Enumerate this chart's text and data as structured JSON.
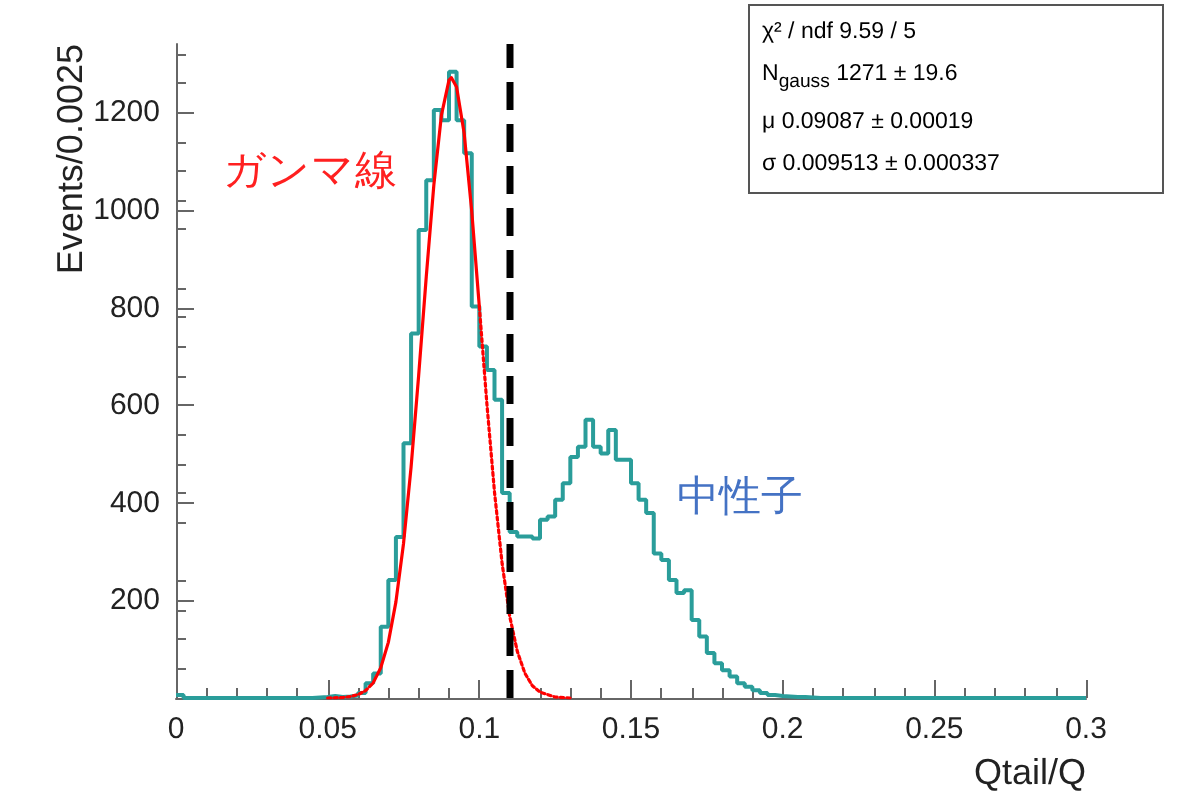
{
  "chart_data": {
    "type": "histogram",
    "xlabel": "Qtail/Q",
    "ylabel": "Events/0.0025",
    "xlim": [
      0,
      0.3
    ],
    "xticks": [
      0,
      0.05,
      0.1,
      0.15,
      0.2,
      0.25,
      0.3
    ],
    "ylim": [
      0,
      1340
    ],
    "yticks": [
      {
        "value": 0,
        "label": null
      },
      200,
      400,
      600,
      800,
      1000,
      1200
    ],
    "grid": false,
    "marker": "none",
    "series": [
      {
        "color": "#2a9d9a",
        "bins": [
          0,
          0.0025,
          0.005,
          0.0075,
          0.01,
          0.0125,
          0.015,
          0.0175,
          0.02,
          0.0225,
          0.025,
          0.0275,
          0.03,
          0.0325,
          0.035,
          0.0375,
          0.04,
          0.0425,
          0.045,
          0.0475,
          0.05,
          0.0525,
          0.055,
          0.0575,
          0.06,
          0.0625,
          0.065,
          0.0675,
          0.07,
          0.0725,
          0.075,
          0.0775,
          0.08,
          0.0825,
          0.085,
          0.0875,
          0.09,
          0.0925,
          0.095,
          0.0975,
          0.1,
          0.1025,
          0.105,
          0.1075,
          0.11,
          0.1125,
          0.115,
          0.1175,
          0.12,
          0.1225,
          0.125,
          0.1275,
          0.13,
          0.1325,
          0.135,
          0.1375,
          0.14,
          0.1425,
          0.145,
          0.1475,
          0.15,
          0.1525,
          0.155,
          0.1575,
          0.16,
          0.1625,
          0.165,
          0.1675,
          0.17,
          0.1725,
          0.175,
          0.1775,
          0.18,
          0.1825,
          0.185,
          0.1875,
          0.19,
          0.1925,
          0.195,
          0.1975,
          0.2,
          0.2025,
          0.205,
          0.2075,
          0.21,
          0.2125,
          0.215,
          0.2175,
          0.22,
          0.2225,
          0.225,
          0.2275,
          0.23,
          0.2325,
          0.235,
          0.2375,
          0.24,
          0.2425,
          0.245,
          0.2475,
          0.25,
          0.2525,
          0.255,
          0.2575,
          0.26,
          0.2625,
          0.265,
          0.2675,
          0.27,
          0.2725,
          0.275,
          0.2775,
          0.28,
          0.2825,
          0.285,
          0.2875,
          0.29,
          0.2925,
          0.295,
          0.2975,
          0.3
        ],
        "values": [
          6,
          0,
          0,
          0,
          0,
          0,
          0,
          0,
          0,
          0,
          0,
          0,
          0,
          0,
          0,
          0,
          0,
          0,
          1,
          2,
          4,
          2,
          3,
          5,
          10,
          30,
          50,
          146,
          242,
          330,
          522,
          747,
          959,
          1061,
          1205,
          1184,
          1283,
          1184,
          1116,
          802,
          720,
          672,
          611,
          420,
          340,
          331,
          331,
          327,
          365,
          372,
          406,
          440,
          494,
          515,
          570,
          515,
          501,
          549,
          488,
          488,
          440,
          406,
          379,
          296,
          283,
          242,
          215,
          221,
          160,
          126,
          92,
          71,
          57,
          44,
          30,
          23,
          16,
          10,
          6,
          4,
          3,
          2,
          2,
          1,
          0,
          0,
          0,
          0,
          0,
          0,
          0,
          0,
          0,
          0,
          0,
          0,
          0,
          0,
          0,
          0,
          0,
          0,
          0,
          0,
          0,
          0,
          0,
          0,
          0,
          0,
          0,
          0,
          0,
          0,
          0,
          0,
          0,
          0,
          0,
          0
        ]
      },
      {
        "type": "line",
        "color": "#ff0000",
        "line_style": "solid",
        "x": [
          0.065,
          0.0675,
          0.07,
          0.0725,
          0.075,
          0.0775,
          0.08,
          0.0825,
          0.085,
          0.0875,
          0.09,
          0.0908,
          0.0925,
          0.095,
          0.0975,
          0.1
        ],
        "values": [
          31,
          62,
          114,
          197,
          316,
          473,
          661,
          863,
          1051,
          1194,
          1266,
          1271,
          1252,
          1157,
          997,
          802
        ]
      },
      {
        "type": "line",
        "color": "#ff0000",
        "line_style": "dotted",
        "x": [
          0.05,
          0.055,
          0.0575,
          0.06,
          0.0625,
          0.065,
          0.08,
          0.1,
          0.1025,
          0.105,
          0.1075,
          0.11,
          0.1125,
          0.115,
          0.1175,
          0.12,
          0.125,
          0.13
        ],
        "values": [
          0,
          1,
          3,
          7,
          15,
          31,
          null,
          802,
          602,
          422,
          276,
          168,
          96,
          51,
          25,
          12,
          2,
          0
        ]
      }
    ],
    "ref_lines": [
      {
        "axis": "x",
        "value": 0.11,
        "color": "#000000",
        "line_style": "dashed"
      }
    ],
    "annotations": [
      "ガンマ線",
      "中性子",
      "χ² / ndf 9.59 / 5",
      "N$_{gauss}$ 1271 ± 19.6",
      "μ 0.09087 ± 0.00019",
      "σ 0.009513 ± 0.000337"
    ]
  }
}
